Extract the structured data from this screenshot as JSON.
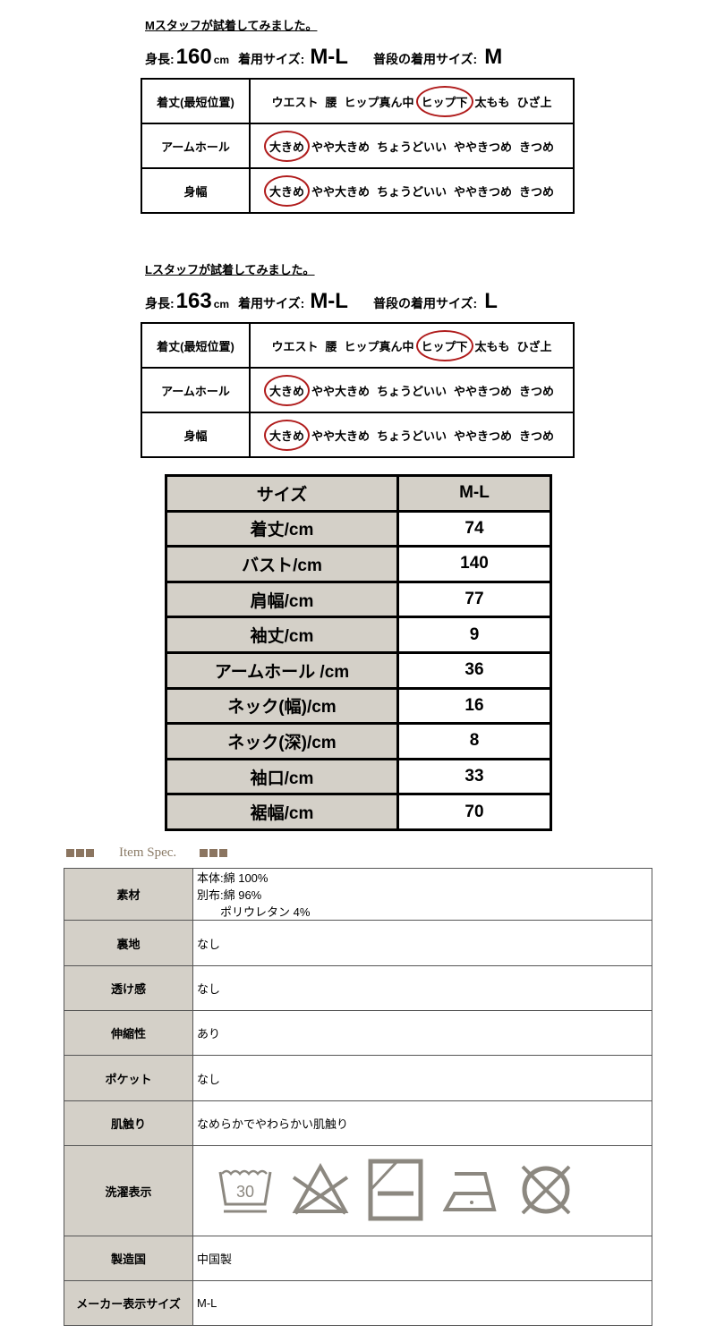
{
  "staff": [
    {
      "title": "Mスタッフが試着してみました。",
      "height_label": "身長:",
      "height": "160",
      "height_unit": "cm",
      "wear_label": "着用サイズ:",
      "wear": "M-L",
      "usual_label": "普段の着用サイズ:",
      "usual": "M",
      "rows": [
        {
          "label": "着丈(最短位置)",
          "options": [
            "ウエスト",
            "腰",
            "ヒップ真ん中",
            "ヒップ下",
            "太もも",
            "ひざ上"
          ],
          "selected": 3
        },
        {
          "label": "アームホール",
          "options": [
            "大きめ",
            "やや大きめ",
            "ちょうどいい",
            "ややきつめ",
            "きつめ"
          ],
          "selected": 0
        },
        {
          "label": "身幅",
          "options": [
            "大きめ",
            "やや大きめ",
            "ちょうどいい",
            "ややきつめ",
            "きつめ"
          ],
          "selected": 0
        }
      ]
    },
    {
      "title": "Lスタッフが試着してみました。",
      "height_label": "身長:",
      "height": "163",
      "height_unit": "cm",
      "wear_label": "着用サイズ:",
      "wear": "M-L",
      "usual_label": "普段の着用サイズ:",
      "usual": "L",
      "rows": [
        {
          "label": "着丈(最短位置)",
          "options": [
            "ウエスト",
            "腰",
            "ヒップ真ん中",
            "ヒップ下",
            "太もも",
            "ひざ上"
          ],
          "selected": 3
        },
        {
          "label": "アームホール",
          "options": [
            "大きめ",
            "やや大きめ",
            "ちょうどいい",
            "ややきつめ",
            "きつめ"
          ],
          "selected": 0
        },
        {
          "label": "身幅",
          "options": [
            "大きめ",
            "やや大きめ",
            "ちょうどいい",
            "ややきつめ",
            "きつめ"
          ],
          "selected": 0
        }
      ]
    }
  ],
  "size_table": {
    "header": [
      "サイズ",
      "M-L"
    ],
    "rows": [
      [
        "着丈/cm",
        "74"
      ],
      [
        "バスト/cm",
        "140"
      ],
      [
        "肩幅/cm",
        "77"
      ],
      [
        "袖丈/cm",
        "9"
      ],
      [
        "アームホール /cm",
        "36"
      ],
      [
        "ネック(幅)/cm",
        "16"
      ],
      [
        "ネック(深)/cm",
        "8"
      ],
      [
        "袖口/cm",
        "33"
      ],
      [
        "裾幅/cm",
        "70"
      ]
    ]
  },
  "spec": {
    "heading": "Item Spec.",
    "rows": [
      {
        "label": "素材",
        "lines": [
          "本体:綿 100%",
          "別布:綿 96%",
          "　　ポリウレタン 4%"
        ]
      },
      {
        "label": "裏地",
        "lines": [
          "なし"
        ]
      },
      {
        "label": "透け感",
        "lines": [
          "なし"
        ]
      },
      {
        "label": "伸縮性",
        "lines": [
          "あり"
        ]
      },
      {
        "label": "ポケット",
        "lines": [
          "なし"
        ]
      },
      {
        "label": "肌触り",
        "lines": [
          "なめらかでやわらかい肌触り"
        ]
      },
      {
        "label": "洗濯表示",
        "icons": [
          "wash-30-icon",
          "no-bleach-icon",
          "drip-dry-shade-icon",
          "iron-low-icon",
          "no-tumble-dry-icon"
        ],
        "wash_temp": "30"
      },
      {
        "label": "製造国",
        "lines": [
          "中国製"
        ]
      },
      {
        "label": "メーカー表示サイズ",
        "lines": [
          "M-L"
        ]
      }
    ],
    "icon_color": "#8c8880",
    "label_bg": "#d4d0c8"
  },
  "selection_color": "#b01c1c"
}
